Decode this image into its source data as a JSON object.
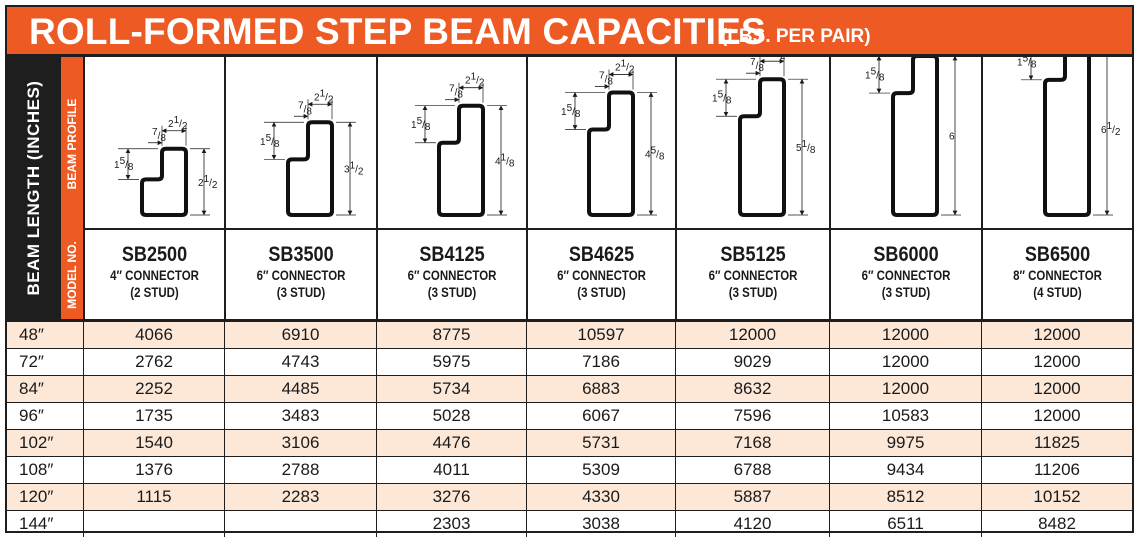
{
  "title": {
    "main": "ROLL-FORMED STEP BEAM CAPACITIES",
    "unit": "(LBS. PER PAIR)"
  },
  "side_label": "BEAM LENGTH (INCHES)",
  "band_labels": {
    "profile": "BEAM PROFILE",
    "model": "MODEL NO."
  },
  "dimensions": {
    "width": {
      "whole": "2",
      "num": "1",
      "den": "2"
    },
    "lip": {
      "num": "7",
      "den": "8"
    },
    "step": {
      "whole": "1",
      "num": "5",
      "den": "8"
    }
  },
  "models": [
    {
      "name": "SB2500",
      "connector": "4″ CONNECTOR",
      "studs": "(2 STUD)",
      "height": {
        "whole": "2",
        "num": "1",
        "den": "2"
      }
    },
    {
      "name": "SB3500",
      "connector": "6″ CONNECTOR",
      "studs": "(3 STUD)",
      "height": {
        "whole": "3",
        "num": "1",
        "den": "2"
      }
    },
    {
      "name": "SB4125",
      "connector": "6″ CONNECTOR",
      "studs": "(3 STUD)",
      "height": {
        "whole": "4",
        "num": "1",
        "den": "8"
      }
    },
    {
      "name": "SB4625",
      "connector": "6″ CONNECTOR",
      "studs": "(3 STUD)",
      "height": {
        "whole": "4",
        "num": "5",
        "den": "8"
      }
    },
    {
      "name": "SB5125",
      "connector": "6″ CONNECTOR",
      "studs": "(3 STUD)",
      "height": {
        "whole": "5",
        "num": "1",
        "den": "8"
      }
    },
    {
      "name": "SB6000",
      "connector": "6″ CONNECTOR",
      "studs": "(3 STUD)",
      "height": {
        "whole": "6",
        "num": "",
        "den": ""
      }
    },
    {
      "name": "SB6500",
      "connector": "8″ CONNECTOR",
      "studs": "(4 STUD)",
      "height": {
        "whole": "6",
        "num": "1",
        "den": "2"
      }
    }
  ],
  "rows": [
    {
      "length": "48″",
      "values": [
        "4066",
        "6910",
        "8775",
        "10597",
        "12000",
        "12000",
        "12000"
      ]
    },
    {
      "length": "72″",
      "values": [
        "2762",
        "4743",
        "5975",
        "7186",
        "9029",
        "12000",
        "12000"
      ]
    },
    {
      "length": "84″",
      "values": [
        "2252",
        "4485",
        "5734",
        "6883",
        "8632",
        "12000",
        "12000"
      ]
    },
    {
      "length": "96″",
      "values": [
        "1735",
        "3483",
        "5028",
        "6067",
        "7596",
        "10583",
        "12000"
      ]
    },
    {
      "length": "102″",
      "values": [
        "1540",
        "3106",
        "4476",
        "5731",
        "7168",
        "9975",
        "11825"
      ]
    },
    {
      "length": "108″",
      "values": [
        "1376",
        "2788",
        "4011",
        "5309",
        "6788",
        "9434",
        "11206"
      ]
    },
    {
      "length": "120″",
      "values": [
        "1115",
        "2283",
        "3276",
        "4330",
        "5887",
        "8512",
        "10152"
      ]
    },
    {
      "length": "144″",
      "values": [
        "",
        "",
        "2303",
        "3038",
        "4120",
        "6511",
        "8482"
      ]
    }
  ],
  "colors": {
    "accent": "#ee5a24",
    "row_shade": "#fde8d8",
    "rule": "#1e1e1e"
  }
}
